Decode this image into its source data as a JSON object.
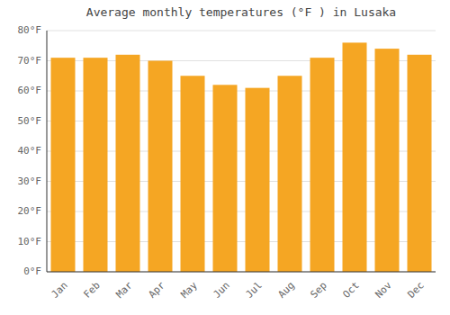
{
  "chart_data": {
    "type": "bar",
    "title": "Average monthly temperatures (°F ) in Lusaka",
    "categories": [
      "Jan",
      "Feb",
      "Mar",
      "Apr",
      "May",
      "Jun",
      "Jul",
      "Aug",
      "Sep",
      "Oct",
      "Nov",
      "Dec"
    ],
    "values": [
      71,
      71,
      72,
      70,
      65,
      62,
      61,
      65,
      71,
      76,
      74,
      72
    ],
    "color": "#F5A623",
    "ylim": [
      0,
      80
    ],
    "yticks": [
      {
        "value": 0,
        "label": "0°F"
      },
      {
        "value": 10,
        "label": "10°F"
      },
      {
        "value": 20,
        "label": "20°F"
      },
      {
        "value": 30,
        "label": "30°F"
      },
      {
        "value": 40,
        "label": "40°F"
      },
      {
        "value": 50,
        "label": "50°F"
      },
      {
        "value": 60,
        "label": "60°F"
      },
      {
        "value": 70,
        "label": "70°F"
      },
      {
        "value": 80,
        "label": "80°F"
      }
    ],
    "grid": true
  }
}
